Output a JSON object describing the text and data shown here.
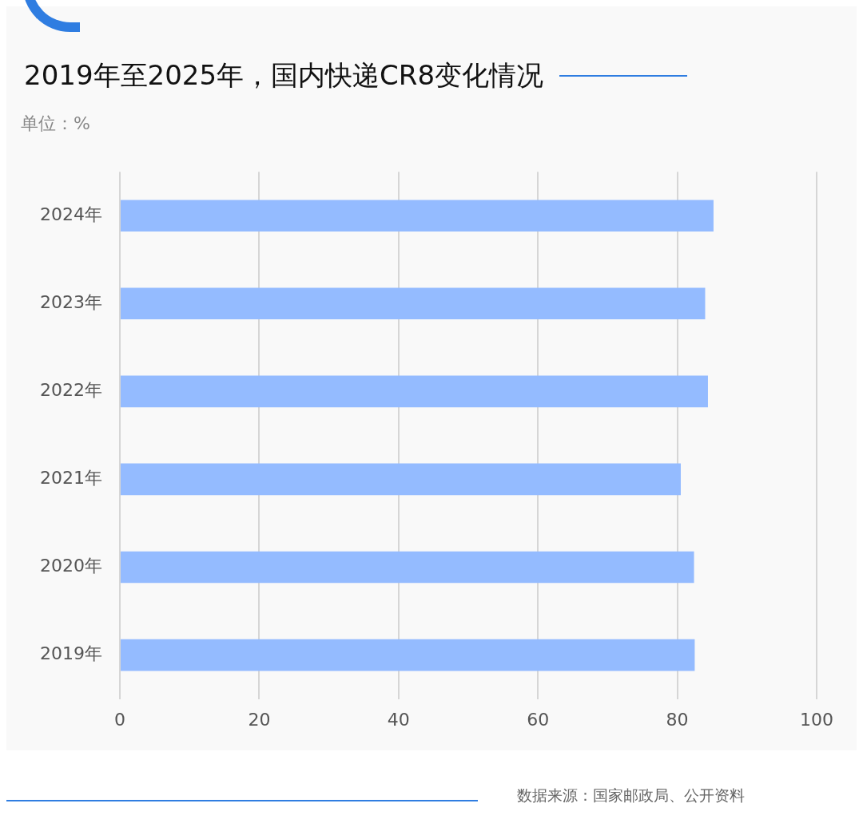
{
  "chart_data": {
    "type": "bar",
    "orientation": "horizontal",
    "title": "2019年至2025年，国内快递CR8变化情况",
    "subtitle": "单位：%",
    "categories": [
      "2024年",
      "2023年",
      "2022年",
      "2021年",
      "2020年",
      "2019年"
    ],
    "values": [
      85.2,
      84.0,
      84.4,
      80.5,
      82.4,
      82.5
    ],
    "color": "#94bbff",
    "xlim": [
      0,
      100
    ],
    "xticks": [
      0,
      20,
      40,
      60,
      80,
      100
    ],
    "grid": "x",
    "annotations": [
      "数据来源：国家邮政局、公开资料"
    ]
  }
}
